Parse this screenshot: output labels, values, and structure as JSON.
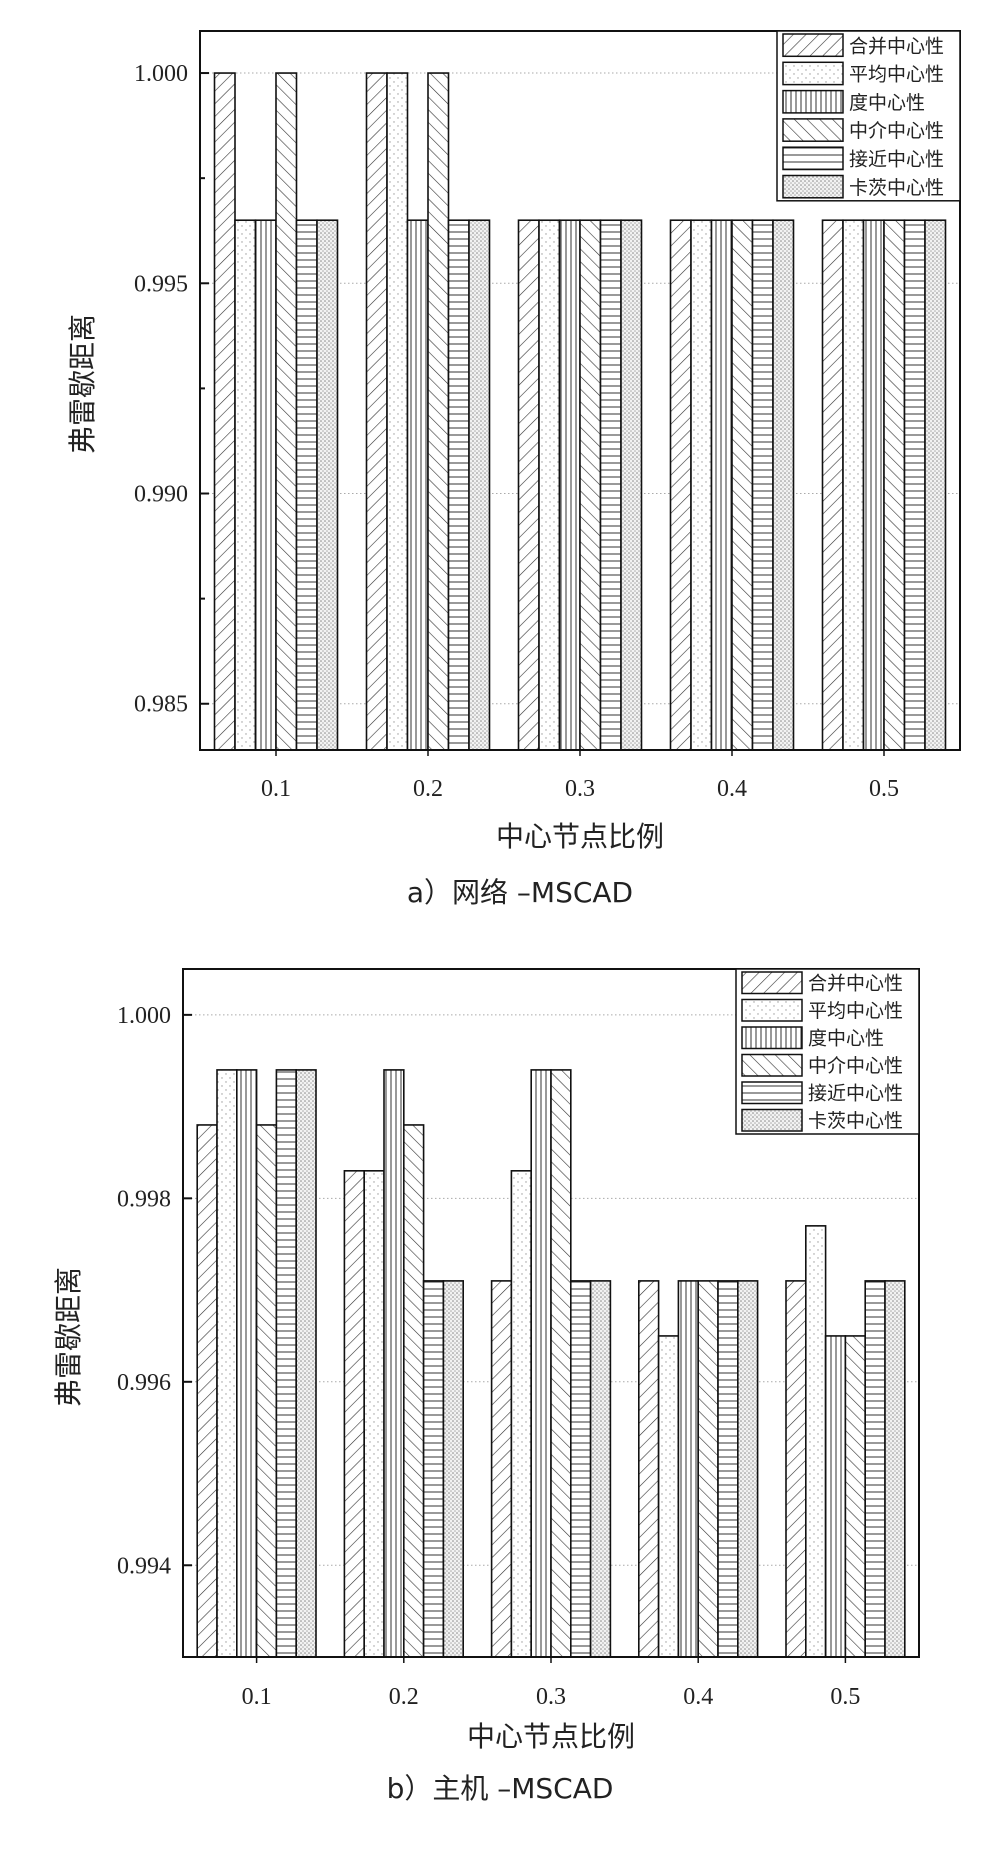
{
  "chart_data": [
    {
      "type": "bar",
      "title": "a）网络 –MSCAD",
      "xlabel": "中心节点比例",
      "ylabel": "弗雷歇距离",
      "categories": [
        "0.1",
        "0.2",
        "0.3",
        "0.4",
        "0.5"
      ],
      "ylim": [
        0.9839,
        1.001
      ],
      "yticks": [
        0.985,
        0.99,
        0.995,
        1.0
      ],
      "ytick_labels": [
        "0.985",
        "0.990",
        "0.995",
        "1.000"
      ],
      "grid": true,
      "legend_position": "top-right",
      "series": [
        {
          "name": "合并中心性",
          "pattern": "diag-right",
          "values": [
            1.0,
            1.0,
            0.9965,
            0.9965,
            0.9965
          ]
        },
        {
          "name": "平均中心性",
          "pattern": "sparse-dots",
          "values": [
            0.9965,
            1.0,
            0.9965,
            0.9965,
            0.9965
          ]
        },
        {
          "name": "度中心性",
          "pattern": "vertical",
          "values": [
            0.9965,
            0.9965,
            0.9965,
            0.9965,
            0.9965
          ]
        },
        {
          "name": "中介中心性",
          "pattern": "diag-left",
          "values": [
            1.0,
            1.0,
            0.9965,
            0.9965,
            0.9965
          ]
        },
        {
          "name": "接近中心性",
          "pattern": "horizontal",
          "values": [
            0.9965,
            0.9965,
            0.9965,
            0.9965,
            0.9965
          ]
        },
        {
          "name": "卡茨中心性",
          "pattern": "dense-dots",
          "values": [
            0.9965,
            0.9965,
            0.9965,
            0.9965,
            0.9965
          ]
        }
      ]
    },
    {
      "type": "bar",
      "title": "b）主机 –MSCAD",
      "xlabel": "中心节点比例",
      "ylabel": "弗雷歇距离",
      "categories": [
        "0.1",
        "0.2",
        "0.3",
        "0.4",
        "0.5"
      ],
      "ylim": [
        0.993,
        1.0005
      ],
      "yticks": [
        0.994,
        0.996,
        0.998,
        1.0
      ],
      "ytick_labels": [
        "0.994",
        "0.996",
        "0.998",
        "1.000"
      ],
      "grid": true,
      "legend_position": "top-right",
      "series": [
        {
          "name": "合并中心性",
          "pattern": "diag-right",
          "values": [
            0.9988,
            0.9983,
            0.9971,
            0.9971,
            0.9971
          ]
        },
        {
          "name": "平均中心性",
          "pattern": "sparse-dots",
          "values": [
            0.9994,
            0.9983,
            0.9983,
            0.9965,
            0.9977
          ]
        },
        {
          "name": "度中心性",
          "pattern": "vertical",
          "values": [
            0.9994,
            0.9994,
            0.9994,
            0.9971,
            0.9965
          ]
        },
        {
          "name": "中介中心性",
          "pattern": "diag-left",
          "values": [
            0.9988,
            0.9988,
            0.9994,
            0.9971,
            0.9965
          ]
        },
        {
          "name": "接近中心性",
          "pattern": "horizontal",
          "values": [
            0.9994,
            0.9971,
            0.9971,
            0.9971,
            0.9971
          ]
        },
        {
          "name": "卡茨中心性",
          "pattern": "dense-dots",
          "values": [
            0.9994,
            0.9971,
            0.9971,
            0.9971,
            0.9971
          ]
        }
      ]
    }
  ]
}
